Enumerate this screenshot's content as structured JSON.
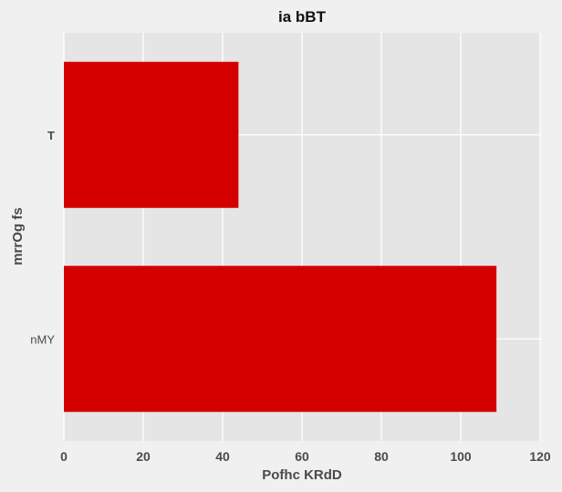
{
  "chart_data": {
    "type": "bar",
    "orientation": "horizontal",
    "title": "ia bBT",
    "xlabel": "Pofhc KRdD",
    "ylabel": "mrrOg fs",
    "categories": [
      "T",
      "nMY"
    ],
    "values": [
      44,
      109
    ],
    "xlim": [
      0,
      120
    ],
    "xticks": [
      0,
      20,
      40,
      60,
      80,
      100,
      120
    ],
    "grid": true,
    "legend": "none",
    "colors": {
      "bar": "#d40000",
      "plot_background": "#e5e5e5",
      "figure_background": "#f0f0f0",
      "grid": "#ffffff"
    }
  }
}
